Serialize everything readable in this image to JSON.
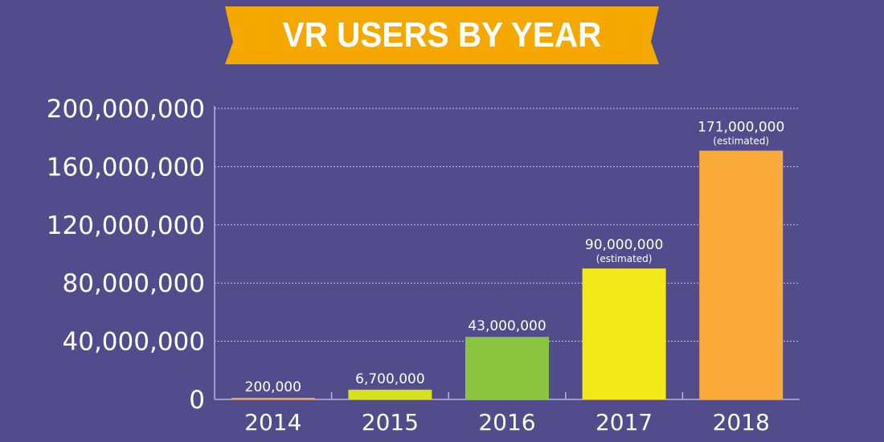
{
  "chart_data": {
    "type": "bar",
    "title": "VR USERS BY YEAR",
    "categories": [
      "2014",
      "2015",
      "2016",
      "2017",
      "2018"
    ],
    "values": [
      200000,
      6700000,
      43000000,
      90000000,
      171000000
    ],
    "data_labels": [
      "200,000",
      "6,700,000",
      "43,000,000",
      "90,000,000",
      "171,000,000"
    ],
    "annotations": [
      "",
      "",
      "",
      "(estimated)",
      "(estimated)"
    ],
    "bar_colors": [
      "#f0a23c",
      "#d8e020",
      "#8bc43f",
      "#f2e81a",
      "#f9aa3a"
    ],
    "ylim": [
      0,
      200000000
    ],
    "y_ticks": [
      0,
      40000000,
      80000000,
      120000000,
      160000000,
      200000000
    ],
    "y_tick_labels": [
      "0",
      "40,000,000",
      "80,000,000",
      "120,000,000",
      "160,000,000",
      "200,000,000"
    ],
    "xlabel": "",
    "ylabel": "",
    "grid": true,
    "background_color": "#524c8c",
    "banner_color": "#f5a800"
  }
}
